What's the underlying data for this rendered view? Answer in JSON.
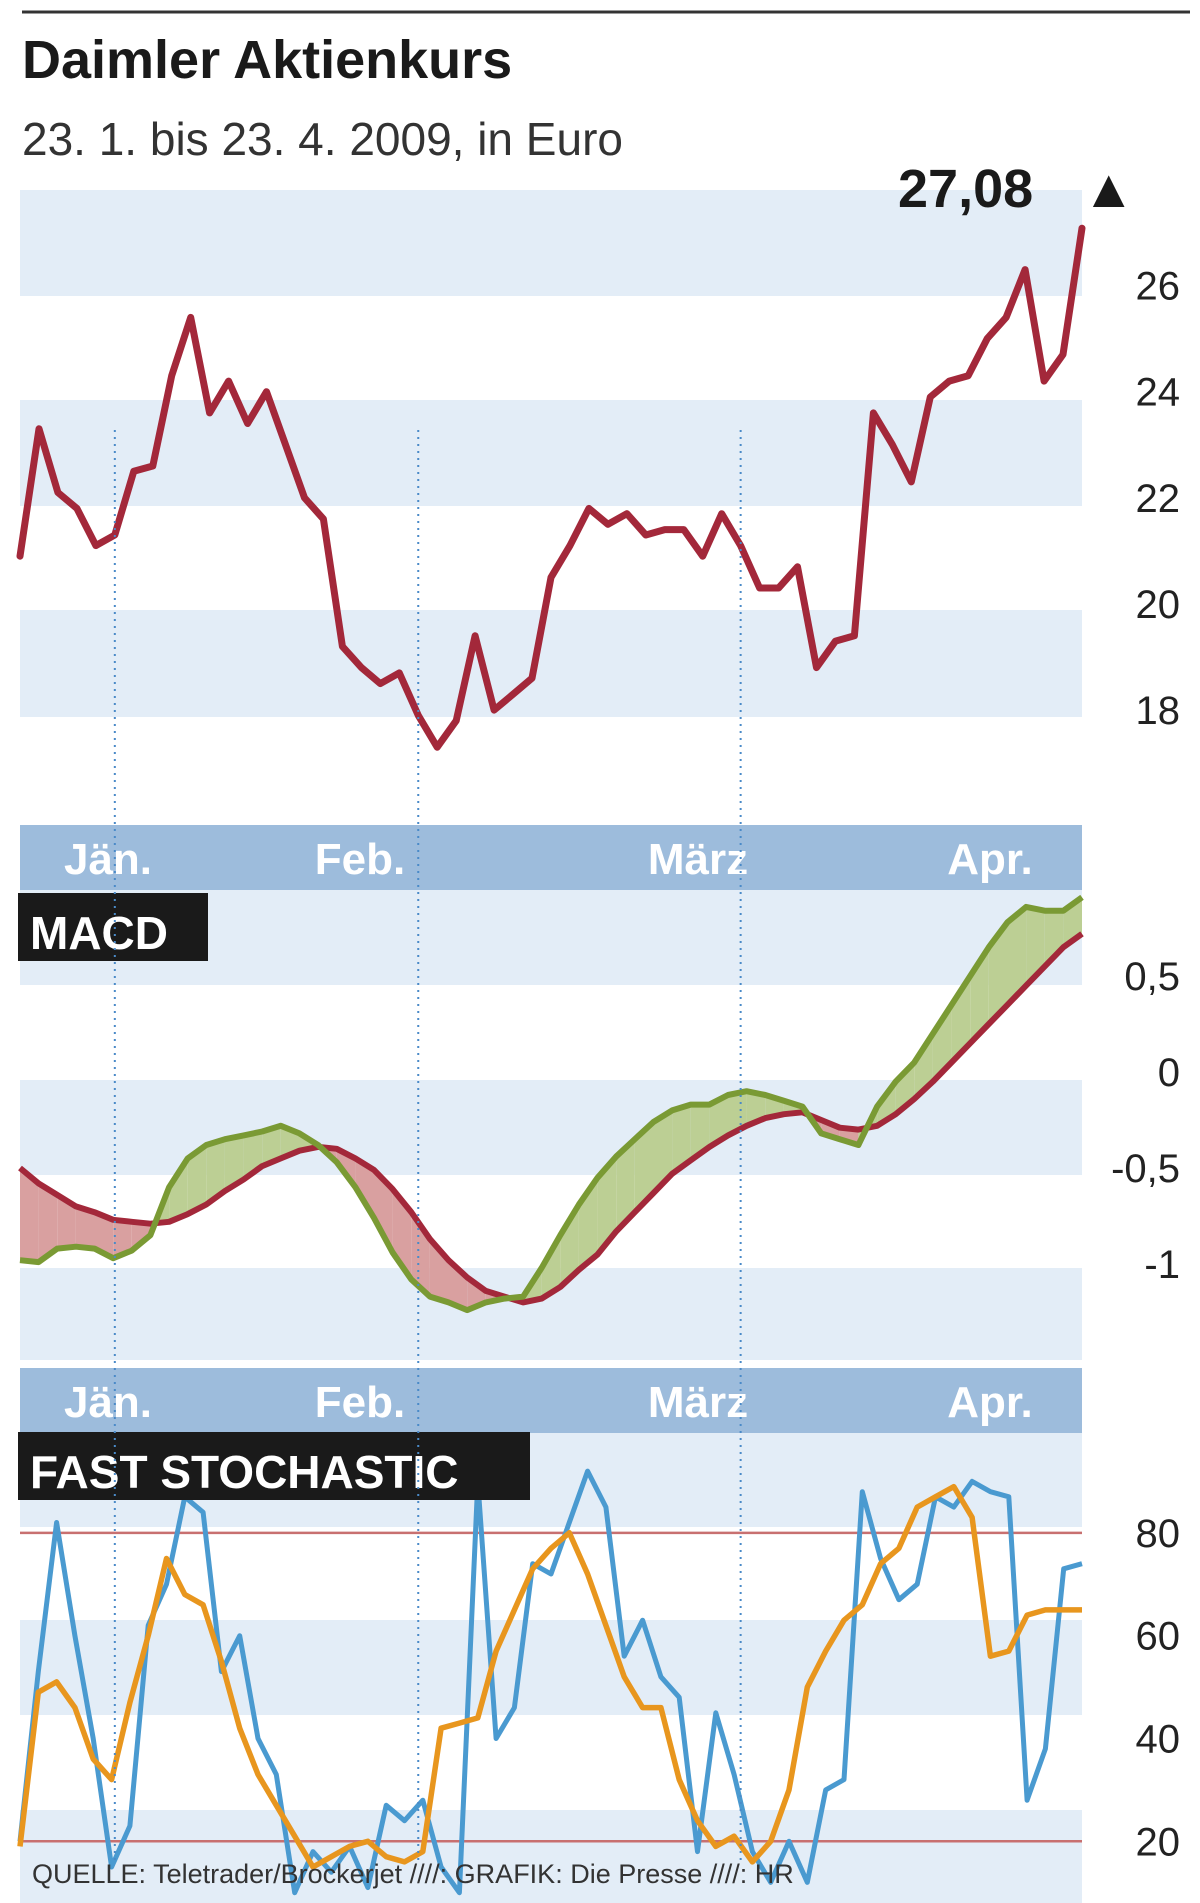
{
  "title": "Daimler Aktienkurs",
  "subtitle": "23. 1. bis 23. 4. 2009, in Euro",
  "last_value": "27,08",
  "last_marker": "▲",
  "source": "QUELLE: Teletrader/Brockerjet  ////: GRAFIK: Die Presse  ////: HR",
  "colors": {
    "band": "#e3edf7",
    "month_band": "#9dbcdc",
    "price": "#a3283a",
    "macd": "#7a9a34",
    "signal": "#a3283a",
    "fill_pos": "#bccf94",
    "fill_neg": "#d9a0a0",
    "stoch_k": "#4a9ad0",
    "stoch_d": "#e8961e",
    "guide": "#4a8ac8",
    "ref_line": "#c87070"
  },
  "month_labels": [
    "Jän.",
    "Feb.",
    "März",
    "Apr."
  ],
  "month_boundary_indices": [
    5,
    21,
    38
  ],
  "chart_data": [
    {
      "type": "line",
      "panel": "price",
      "y_tick_labels": [
        "26",
        "24",
        "22",
        "20",
        "18"
      ],
      "y_ticks": [
        26,
        24,
        22,
        20,
        18
      ],
      "ylim": [
        16.4,
        27.8
      ],
      "series": [
        {
          "values": [
            20.9,
            23.3,
            22.1,
            21.8,
            21.1,
            21.3,
            22.5,
            22.6,
            24.3,
            25.4,
            23.6,
            24.2,
            23.4,
            24.0,
            23.0,
            22.0,
            21.6,
            19.2,
            18.8,
            18.5,
            18.7,
            17.9,
            17.3,
            17.8,
            19.4,
            18.0,
            18.3,
            18.6,
            20.5,
            21.1,
            21.8,
            21.5,
            21.7,
            21.3,
            21.4,
            21.4,
            20.9,
            21.7,
            21.1,
            20.3,
            20.3,
            20.7,
            18.8,
            19.3,
            19.4,
            23.6,
            23.0,
            22.3,
            23.9,
            24.2,
            24.3,
            25.0,
            25.4,
            26.3,
            24.2,
            24.7,
            27.08
          ]
        }
      ]
    },
    {
      "type": "line",
      "panel": "macd",
      "label": "MACD",
      "y_tick_labels": [
        "0,5",
        "0",
        "-0,5",
        "-1"
      ],
      "y_ticks": [
        0.5,
        0,
        -0.5,
        -1
      ],
      "ylim": [
        -1.5,
        1.0
      ],
      "series": [
        {
          "values": [
            -0.98,
            -0.99,
            -0.92,
            -0.91,
            -0.92,
            -0.97,
            -0.93,
            -0.85,
            -0.6,
            -0.45,
            -0.38,
            -0.35,
            -0.33,
            -0.31,
            -0.28,
            -0.32,
            -0.38,
            -0.47,
            -0.6,
            -0.76,
            -0.94,
            -1.08,
            -1.17,
            -1.2,
            -1.24,
            -1.2,
            -1.18,
            -1.17,
            -1.02,
            -0.85,
            -0.69,
            -0.55,
            -0.44,
            -0.35,
            -0.26,
            -0.2,
            -0.17,
            -0.17,
            -0.12,
            -0.1,
            -0.12,
            -0.15,
            -0.18,
            -0.32,
            -0.35,
            -0.38,
            -0.18,
            -0.05,
            0.05,
            0.2,
            0.35,
            0.5,
            0.65,
            0.78,
            0.86,
            0.84,
            0.84,
            0.91
          ]
        },
        {
          "values": [
            -0.5,
            -0.58,
            -0.64,
            -0.7,
            -0.73,
            -0.77,
            -0.78,
            -0.79,
            -0.78,
            -0.74,
            -0.69,
            -0.62,
            -0.56,
            -0.49,
            -0.45,
            -0.41,
            -0.39,
            -0.4,
            -0.45,
            -0.51,
            -0.61,
            -0.73,
            -0.87,
            -0.98,
            -1.07,
            -1.14,
            -1.17,
            -1.2,
            -1.18,
            -1.12,
            -1.03,
            -0.95,
            -0.83,
            -0.73,
            -0.63,
            -0.53,
            -0.46,
            -0.39,
            -0.33,
            -0.28,
            -0.24,
            -0.22,
            -0.21,
            -0.25,
            -0.29,
            -0.3,
            -0.28,
            -0.22,
            -0.14,
            -0.05,
            0.05,
            0.15,
            0.25,
            0.35,
            0.45,
            0.55,
            0.65,
            0.72
          ]
        }
      ]
    },
    {
      "type": "line",
      "panel": "stochastic",
      "label": "FAST STOCHASTIC",
      "y_tick_labels": [
        "80",
        "60",
        "40",
        "20"
      ],
      "y_ticks": [
        80,
        60,
        40,
        20
      ],
      "reference_lines": [
        80,
        20
      ],
      "ylim": [
        8,
        100
      ],
      "series": [
        {
          "values": [
            20,
            53,
            82,
            60,
            40,
            15,
            23,
            62,
            70,
            87,
            84,
            53,
            60,
            40,
            33,
            10,
            18,
            14,
            19,
            11,
            27,
            24,
            28,
            15,
            10,
            90,
            40,
            46,
            74,
            72,
            82,
            92,
            85,
            56,
            63,
            52,
            48,
            18,
            45,
            33,
            18,
            12,
            20,
            12,
            30,
            32,
            88,
            75,
            67,
            70,
            87,
            85,
            90,
            88,
            87,
            28,
            38,
            73,
            74
          ]
        },
        {
          "values": [
            19,
            49,
            51,
            46,
            36,
            32,
            47,
            60,
            75,
            68,
            66,
            55,
            42,
            33,
            27,
            21,
            15,
            17,
            19,
            20,
            17,
            16,
            18,
            42,
            43,
            44,
            57,
            65,
            73,
            77,
            80,
            72,
            62,
            52,
            46,
            46,
            32,
            24,
            19,
            21,
            16,
            20,
            30,
            50,
            57,
            63,
            66,
            74,
            77,
            85,
            87,
            89,
            83,
            56,
            57,
            64,
            65,
            65,
            65
          ]
        }
      ]
    }
  ]
}
